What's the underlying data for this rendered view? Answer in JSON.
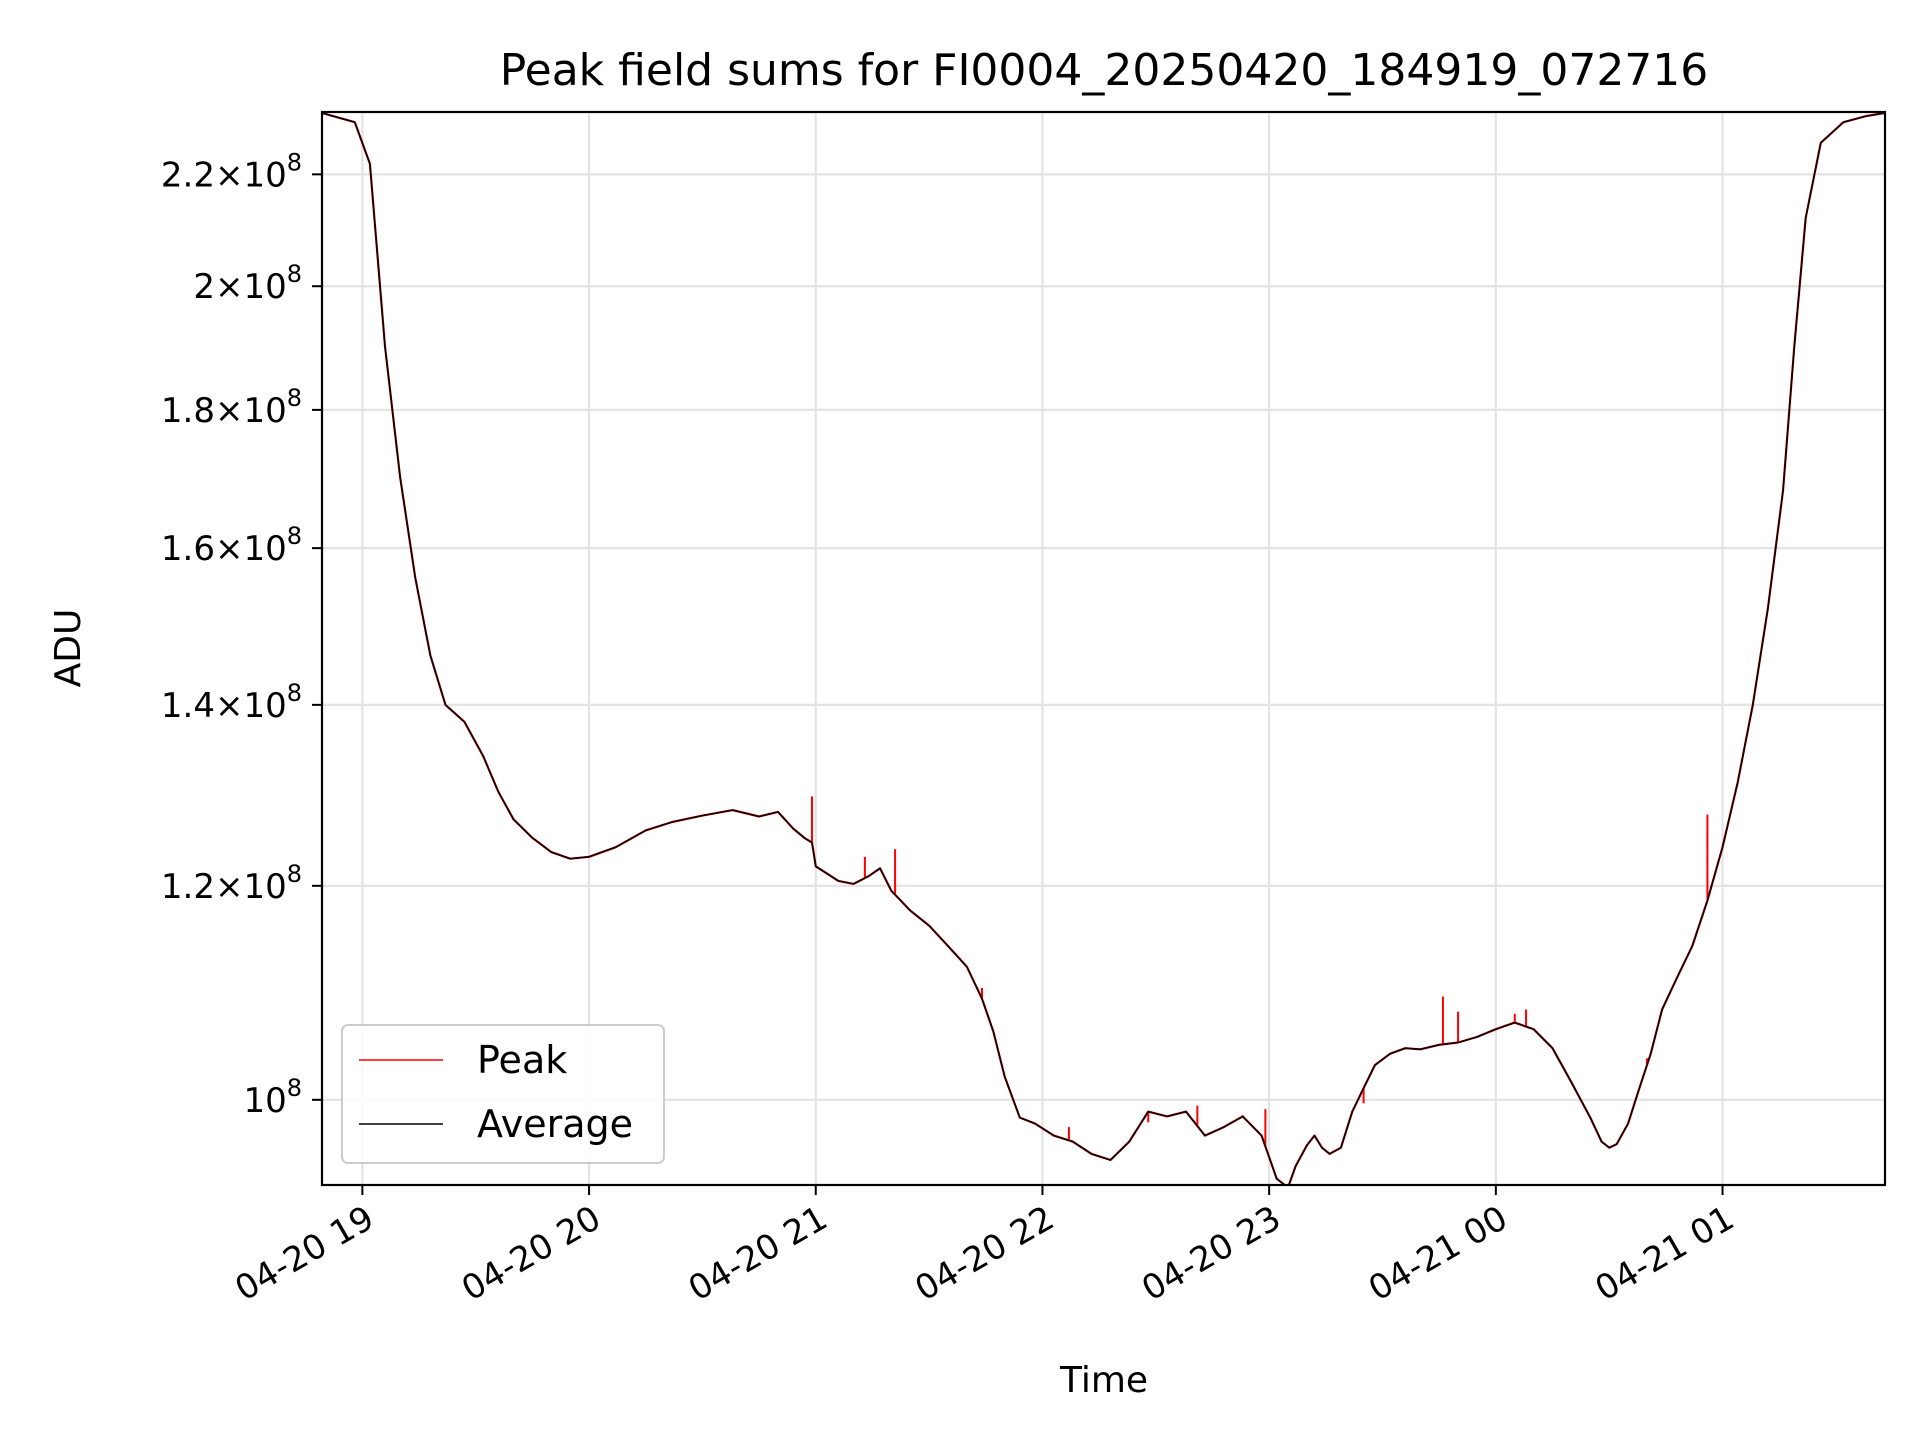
{
  "chart_data": {
    "type": "line",
    "title": "Peak field sums for FI0004_20250420_184919_072716",
    "xlabel": "Time",
    "ylabel": "ADU",
    "x_range": [
      "2025-04-20 18:49:19",
      "2025-04-21 01:43:00"
    ],
    "y_range": [
      93000000,
      232000000
    ],
    "y_scale": "log",
    "grid": true,
    "legend_position": "lower-left",
    "x_ticks": [
      {
        "value": "2025-04-20 19:00",
        "label": "04-20 19"
      },
      {
        "value": "2025-04-20 20:00",
        "label": "04-20 20"
      },
      {
        "value": "2025-04-20 21:00",
        "label": "04-20 21"
      },
      {
        "value": "2025-04-20 22:00",
        "label": "04-20 22"
      },
      {
        "value": "2025-04-20 23:00",
        "label": "04-20 23"
      },
      {
        "value": "2025-04-21 00:00",
        "label": "04-21 00"
      },
      {
        "value": "2025-04-21 01:00",
        "label": "04-21 01"
      }
    ],
    "y_ticks": [
      {
        "value": 100000000,
        "mantissa": "",
        "exponent": "8"
      },
      {
        "value": 120000000,
        "mantissa": "1.2",
        "exponent": "8"
      },
      {
        "value": 140000000,
        "mantissa": "1.4",
        "exponent": "8"
      },
      {
        "value": 160000000,
        "mantissa": "1.6",
        "exponent": "8"
      },
      {
        "value": 180000000,
        "mantissa": "1.8",
        "exponent": "8"
      },
      {
        "value": 200000000,
        "mantissa": "2",
        "exponent": "8"
      },
      {
        "value": 220000000,
        "mantissa": "2.2",
        "exponent": "8"
      }
    ],
    "series": [
      {
        "name": "Average",
        "color": "#000000",
        "x": [
          "2025-04-20 18:49:19",
          "2025-04-20 18:58",
          "2025-04-20 19:02",
          "2025-04-20 19:06",
          "2025-04-20 19:10",
          "2025-04-20 19:14",
          "2025-04-20 19:18",
          "2025-04-20 19:22",
          "2025-04-20 19:27",
          "2025-04-20 19:32",
          "2025-04-20 19:36",
          "2025-04-20 19:40",
          "2025-04-20 19:45",
          "2025-04-20 19:50",
          "2025-04-20 19:55",
          "2025-04-20 20:00",
          "2025-04-20 20:07",
          "2025-04-20 20:15",
          "2025-04-20 20:22",
          "2025-04-20 20:30",
          "2025-04-20 20:38",
          "2025-04-20 20:45",
          "2025-04-20 20:50",
          "2025-04-20 20:54",
          "2025-04-20 20:57",
          "2025-04-20 20:59",
          "2025-04-20 21:00",
          "2025-04-20 21:02",
          "2025-04-20 21:06",
          "2025-04-20 21:10",
          "2025-04-20 21:14",
          "2025-04-20 21:17",
          "2025-04-20 21:20",
          "2025-04-20 21:25",
          "2025-04-20 21:30",
          "2025-04-20 21:35",
          "2025-04-20 21:40",
          "2025-04-20 21:44",
          "2025-04-20 21:47",
          "2025-04-20 21:50",
          "2025-04-20 21:54",
          "2025-04-20 21:58",
          "2025-04-20 22:03",
          "2025-04-20 22:08",
          "2025-04-20 22:13",
          "2025-04-20 22:18",
          "2025-04-20 22:23",
          "2025-04-20 22:28",
          "2025-04-20 22:33",
          "2025-04-20 22:38",
          "2025-04-20 22:43",
          "2025-04-20 22:48",
          "2025-04-20 22:53",
          "2025-04-20 22:58",
          "2025-04-20 23:02",
          "2025-04-20 23:05",
          "2025-04-20 23:07",
          "2025-04-20 23:10",
          "2025-04-20 23:12",
          "2025-04-20 23:14",
          "2025-04-20 23:16",
          "2025-04-20 23:19",
          "2025-04-20 23:22",
          "2025-04-20 23:25",
          "2025-04-20 23:28",
          "2025-04-20 23:32",
          "2025-04-20 23:36",
          "2025-04-20 23:40",
          "2025-04-20 23:45",
          "2025-04-20 23:50",
          "2025-04-20 23:55",
          "2025-04-21 00:00",
          "2025-04-21 00:05",
          "2025-04-21 00:10",
          "2025-04-21 00:15",
          "2025-04-21 00:20",
          "2025-04-21 00:25",
          "2025-04-21 00:28",
          "2025-04-21 00:30",
          "2025-04-21 00:32",
          "2025-04-21 00:35",
          "2025-04-21 00:38",
          "2025-04-21 00:41",
          "2025-04-21 00:44",
          "2025-04-21 00:48",
          "2025-04-21 00:52",
          "2025-04-21 00:56",
          "2025-04-21 01:00",
          "2025-04-21 01:04",
          "2025-04-21 01:08",
          "2025-04-21 01:12",
          "2025-04-21 01:16",
          "2025-04-21 01:19",
          "2025-04-21 01:22",
          "2025-04-21 01:26",
          "2025-04-21 01:32",
          "2025-04-21 01:38",
          "2025-04-21 01:43"
        ],
        "y": [
          231800000,
          230000000,
          222000000,
          190000000,
          170000000,
          156000000,
          146000000,
          140000000,
          138000000,
          134000000,
          130000000,
          127000000,
          125000000,
          123500000,
          122800000,
          123000000,
          124000000,
          125800000,
          126700000,
          127400000,
          128000000,
          127300000,
          127800000,
          126000000,
          125000000,
          124500000,
          122000000,
          121500000,
          120500000,
          120200000,
          121000000,
          121800000,
          119500000,
          117500000,
          116000000,
          114000000,
          112000000,
          109000000,
          106000000,
          102000000,
          98500000,
          98000000,
          97000000,
          96500000,
          95500000,
          95000000,
          96500000,
          99000000,
          98600000,
          99000000,
          97000000,
          97700000,
          98600000,
          97000000,
          93500000,
          92800000,
          94500000,
          96200000,
          97000000,
          96000000,
          95500000,
          96000000,
          99000000,
          101000000,
          103000000,
          104000000,
          104500000,
          104400000,
          104800000,
          105000000,
          105500000,
          106200000,
          106800000,
          106200000,
          104500000,
          101500000,
          98500000,
          96500000,
          96000000,
          96300000,
          98000000,
          101000000,
          104000000,
          108000000,
          111000000,
          114000000,
          118500000,
          124000000,
          131000000,
          140000000,
          152000000,
          168000000,
          190000000,
          212000000,
          226000000,
          230000000,
          231200000,
          231800000
        ]
      },
      {
        "name": "Peak",
        "color": "#ff0000",
        "spikes": [
          {
            "x": "2025-04-20 20:59",
            "y": 129500000
          },
          {
            "x": "2025-04-20 21:13",
            "y": 123000000
          },
          {
            "x": "2025-04-20 21:21",
            "y": 123800000
          },
          {
            "x": "2025-04-20 21:44",
            "y": 110000000
          },
          {
            "x": "2025-04-20 22:07",
            "y": 97700000
          },
          {
            "x": "2025-04-20 22:28",
            "y": 98100000
          },
          {
            "x": "2025-04-20 22:41",
            "y": 99500000
          },
          {
            "x": "2025-04-20 22:53",
            "y": 98700000
          },
          {
            "x": "2025-04-20 22:59",
            "y": 99200000
          },
          {
            "x": "2025-04-20 23:25",
            "y": 99700000
          },
          {
            "x": "2025-04-20 23:46",
            "y": 109200000
          },
          {
            "x": "2025-04-20 23:50",
            "y": 107800000
          },
          {
            "x": "2025-04-21 00:05",
            "y": 107600000
          },
          {
            "x": "2025-04-21 00:08",
            "y": 108000000
          },
          {
            "x": "2025-04-21 00:40",
            "y": 103600000
          },
          {
            "x": "2025-04-21 00:56",
            "y": 127500000
          }
        ]
      }
    ]
  }
}
